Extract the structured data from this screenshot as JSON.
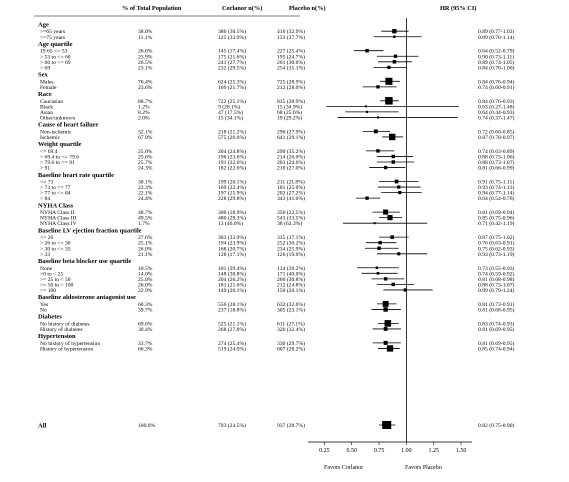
{
  "headers": {
    "pct": "% of Total Population",
    "cor": "Corlanor n(%)",
    "pla": "Placebo n(%)",
    "hr": "HR (95% CI)"
  },
  "favors": {
    "left": "Favors Corlanor",
    "right": "Favors Placebo"
  },
  "chart_data": {
    "type": "forest",
    "x_ticks": [
      0.25,
      0.5,
      0.75,
      1.0,
      1.25,
      1.5
    ],
    "x_tick_labels": [
      "0.25",
      "0.50",
      "0.75",
      "1.00",
      "1.25",
      "1.50"
    ],
    "xlim": [
      0.1,
      1.6
    ],
    "reference_line": 1.0,
    "groups": [
      {
        "title": "Age",
        "rows": [
          {
            "label": ">=65 years",
            "pct": "38.0%",
            "cor": "386 (30.5%)",
            "pla": "410 (32.9%)",
            "hr": 0.89,
            "lo": 0.77,
            "hi": 1.02,
            "hr_text": "0.89 (0.77-1.02)"
          },
          {
            "label": ">=75 years",
            "pct": "11.1%",
            "cor": "125 (33.9%)",
            "pla": "133 (37.7%)",
            "hr": 0.89,
            "lo": 0.7,
            "hi": 1.14,
            "hr_text": "0.89 (0.70-1.14)"
          }
        ]
      },
      {
        "title": "Age quartile",
        "rows": [
          {
            "label": "19 65 <= 53",
            "pct": "26.6%",
            "cor": "145 (17.4%)",
            "pla": "227 (25.4%)",
            "hr": 0.64,
            "lo": 0.52,
            "hi": 0.79,
            "hr_text": "0.64 (0.52-0.79)"
          },
          {
            "label": "> 53 to <= 60",
            "pct": "23.9%",
            "cor": "175 (21.6%)",
            "pla": "195 (24.7%)",
            "hr": 0.9,
            "lo": 0.73,
            "hi": 1.11,
            "hr_text": "0.90 (0.73-1.11)"
          },
          {
            "label": "> 60 to <= 69",
            "pct": "26.5%",
            "cor": "241 (27.7%)",
            "pla": "261 (30.6%)",
            "hr": 0.89,
            "lo": 0.74,
            "hi": 1.05,
            "hr_text": "0.89 (0.74-1.05)"
          },
          {
            "label": "> 69",
            "pct": "23.1%",
            "cor": "232 (29.5%)",
            "pla": "254 (35.1%)",
            "hr": 0.84,
            "lo": 0.7,
            "hi": 1.0,
            "hr_text": "0.84 (0.70-1.00)"
          }
        ]
      },
      {
        "title": "Sex",
        "rows": [
          {
            "label": "Males",
            "pct": "76.4%",
            "cor": "624 (25.3%)",
            "pla": "725 (28.9%)",
            "hr": 0.84,
            "lo": 0.76,
            "hi": 0.94,
            "hr_text": "0.84 (0.76-0.94)"
          },
          {
            "label": "Female",
            "pct": "23.6%",
            "cor": "169 (21.7%)",
            "pla": "212 (28.0%)",
            "hr": 0.74,
            "lo": 0.6,
            "hi": 0.91,
            "hr_text": "0.74 (0.60-0.91)"
          }
        ]
      },
      {
        "title": "Race",
        "rows": [
          {
            "label": "Caucasian",
            "pct": "88.7%",
            "cor": "722 (25.1%)",
            "pla": "835 (28.9%)",
            "hr": 0.84,
            "lo": 0.76,
            "hi": 0.93,
            "hr_text": "0.84 (0.76-0.93)"
          },
          {
            "label": "Black",
            "pct": "1.2%",
            "cor": "9 (28.1%)",
            "pla": "15 (34.9%)",
            "hr": 0.63,
            "lo": 0.27,
            "hi": 1.48,
            "hr_text": "0.63 (0.27-1.48)"
          },
          {
            "label": "Asian",
            "pct": "8.2%",
            "cor": "47 (17.5%)",
            "pla": "68 (25.6%)",
            "hr": 0.64,
            "lo": 0.44,
            "hi": 0.93,
            "hr_text": "0.64 (0.44-0.93)"
          },
          {
            "label": "Other/unknown",
            "pct": "2.0%",
            "cor": "15 (34.1%)",
            "pla": "19 (29.2%)",
            "hr": 0.74,
            "lo": 0.37,
            "hi": 1.47,
            "hr_text": "0.74 (0.37-1.47)"
          }
        ]
      },
      {
        "title": "Cause of heart failure",
        "rows": [
          {
            "label": "Non-ischemic",
            "pct": "32.1%",
            "cor": "218 (21.2%)",
            "pla": "296 (27.9%)",
            "hr": 0.72,
            "lo": 0.6,
            "hi": 0.85,
            "hr_text": "0.72 (0.60-0.85)"
          },
          {
            "label": "Ischemic",
            "pct": "67.9%",
            "cor": "575 (26.6%)",
            "pla": "641 (29.1%)",
            "hr": 0.87,
            "lo": 0.78,
            "hi": 0.97,
            "hr_text": "0.87 (0.78-0.97)"
          }
        ]
      },
      {
        "title": "Weight quartile",
        "rows": [
          {
            "label": "<= 69.4",
            "pct": "25.0%",
            "cor": "204 (24.8%)",
            "pla": "290 (35.2%)",
            "hr": 0.74,
            "lo": 0.63,
            "hi": 0.89,
            "hr_text": "0.74 (0.63-0.89)"
          },
          {
            "label": "> 69.4 to <= 79.6",
            "pct": "25.6%",
            "cor": "196 (23.6%)",
            "pla": "214 (26.0%)",
            "hr": 0.88,
            "lo": 0.73,
            "hi": 1.06,
            "hr_text": "0.88 (0.73-1.06)"
          },
          {
            "label": "> 79.6 to <= 91",
            "pct": "25.7%",
            "cor": "191 (22.6%)",
            "pla": "203 (24.6%)",
            "hr": 0.88,
            "lo": 0.73,
            "hi": 1.07,
            "hr_text": "0.88 (0.73-1.07)"
          },
          {
            "label": "> 91",
            "pct": "24.3%",
            "cor": "182 (22.6%)",
            "pla": "210 (27.0%)",
            "hr": 0.81,
            "lo": 0.66,
            "hi": 0.99,
            "hr_text": "0.81 (0.66-0.99)"
          }
        ]
      },
      {
        "title": "Baseline heart rate quartile",
        "rows": [
          {
            "label": "<= 73",
            "pct": "30.1%",
            "cor": "199 (20.1%)",
            "pla": "211 (21.8%)",
            "hr": 0.91,
            "lo": 0.75,
            "hi": 1.11,
            "hr_text": "0.91 (0.75-1.11)"
          },
          {
            "label": "> 73 to <= 77",
            "pct": "23.3%",
            "cor": "169 (22.4%)",
            "pla": "181 (25.0%)",
            "hr": 0.93,
            "lo": 0.74,
            "hi": 1.13,
            "hr_text": "0.93 (0.74-1.13)"
          },
          {
            "label": "> 77 to <= 84",
            "pct": "22.1%",
            "cor": "197 (25.9%)",
            "pla": "202 (27.2%)",
            "hr": 0.94,
            "lo": 0.77,
            "hi": 1.14,
            "hr_text": "0.94 (0.77-1.14)"
          },
          {
            "label": "> 84",
            "pct": "24.4%",
            "cor": "228 (29.8%)",
            "pla": "343 (41.6%)",
            "hr": 0.64,
            "lo": 0.54,
            "hi": 0.76,
            "hr_text": "0.64 (0.54-0.76)"
          }
        ]
      },
      {
        "title": "NYHA Class",
        "rows": [
          {
            "label": "NYHA Class II",
            "pct": "48.7%",
            "cor": "300 (18.9%)",
            "pla": "356 (22.5%)",
            "hr": 0.81,
            "lo": 0.69,
            "hi": 0.94,
            "hr_text": "0.81 (0.69-0.94)"
          },
          {
            "label": "NYHA Class III",
            "pct": "49.5%",
            "cor": "480 (29.3%)",
            "pla": "543 (33.5%)",
            "hr": 0.85,
            "lo": 0.75,
            "hi": 0.96,
            "hr_text": "0.85 (0.75-0.96)"
          },
          {
            "label": "NYHA Class IV",
            "pct": "1.7%",
            "cor": "13 (46.0%)",
            "pla": "38 (62.3%)",
            "hr": 0.71,
            "lo": 0.42,
            "hi": 1.19,
            "hr_text": "0.71 (0.42-1.19)"
          }
        ]
      },
      {
        "title": "Baseline LV ejection fraction quartile",
        "rows": [
          {
            "label": "<= 26",
            "pct": "27.6%",
            "cor": "303 (33.9%)",
            "pla": "335 (37.1%)",
            "hr": 0.87,
            "lo": 0.75,
            "hi": 1.02,
            "hr_text": "0.87 (0.75-1.02)"
          },
          {
            "label": "> 26 to <= 30",
            "pct": "25.1%",
            "cor": "194 (23.9%)",
            "pla": "252 (30.2%)",
            "hr": 0.76,
            "lo": 0.63,
            "hi": 0.91,
            "hr_text": "0.76 (0.63-0.91)"
          },
          {
            "label": "> 30 to <= 33",
            "pct": "26.0%",
            "cor": "168 (20.7%)",
            "pla": "234 (25.9%)",
            "hr": 0.75,
            "lo": 0.62,
            "hi": 0.93,
            "hr_text": "0.75 (0.62-0.93)"
          },
          {
            "label": "> 33",
            "pct": "21.1%",
            "cor": "128 (17.1%)",
            "pla": "126 (19.0%)",
            "hr": 0.93,
            "lo": 0.73,
            "hi": 1.19,
            "hr_text": "0.93 (0.73-1.19)"
          }
        ]
      },
      {
        "title": "Baseline beta blocker use quartile",
        "rows": [
          {
            "label": "None",
            "pct": "10.5%",
            "cor": "101 (39.4%)",
            "pla": "134 (39.2%)",
            "hr": 0.73,
            "lo": 0.55,
            "hi": 0.93,
            "hr_text": "0.73 (0.55-0.93)"
          },
          {
            "label": ">0 to < 25",
            "pct": "14.0%",
            "cor": "148 (30.8%)",
            "pla": "171 (40.0%)",
            "hr": 0.74,
            "lo": 0.59,
            "hi": 0.92,
            "hr_text": "0.74 (0.59-0.92)"
          },
          {
            "label": ">= 25 to < 50",
            "pct": "25.0%",
            "cor": "204 (26.2%)",
            "pla": "260 (30.8%)",
            "hr": 0.81,
            "lo": 0.68,
            "hi": 0.98,
            "hr_text": "0.81 (0.68-0.98)"
          },
          {
            "label": ">= 50 to < 100",
            "pct": "26.0%",
            "cor": "181 (21.6%)",
            "pla": "212 (24.8%)",
            "hr": 0.88,
            "lo": 0.73,
            "hi": 1.07,
            "hr_text": "0.88 (0.73-1.07)"
          },
          {
            "label": ">= 100",
            "pct": "22.9%",
            "cor": "149 (20.1%)",
            "pla": "150 (20.1%)",
            "hr": 0.99,
            "lo": 0.79,
            "hi": 1.24,
            "hr_text": "0.99 (0.79-1.24)"
          }
        ]
      },
      {
        "title": "Baseline aldosterone antagonist use",
        "rows": [
          {
            "label": "Yes",
            "pct": "60.3%",
            "cor": "556 (28.1%)",
            "pla": "632 (32.6%)",
            "hr": 0.81,
            "lo": 0.73,
            "hi": 0.91,
            "hr_text": "0.81 (0.73-0.91)"
          },
          {
            "label": "No",
            "pct": "39.7%",
            "cor": "237 (18.8%)",
            "pla": "305 (23.1%)",
            "hr": 0.81,
            "lo": 0.68,
            "hi": 0.95,
            "hr_text": "0.81 (0.68-0.95)"
          }
        ]
      },
      {
        "title": "Diabetes",
        "rows": [
          {
            "label": "No history of diabetes",
            "pct": "69.6%",
            "cor": "525 (21.1%)",
            "pla": "611 (27.1%)",
            "hr": 0.83,
            "lo": 0.74,
            "hi": 0.93,
            "hr_text": "0.83 (0.74-0.93)"
          },
          {
            "label": "History of diabetes",
            "pct": "30.4%",
            "cor": "268 (27.8%)",
            "pla": "326 (32.4%)",
            "hr": 0.81,
            "lo": 0.69,
            "hi": 0.95,
            "hr_text": "0.81 (0.69-0.95)"
          }
        ]
      },
      {
        "title": "Hypertension",
        "rows": [
          {
            "label": "No history of hypertension",
            "pct": "33.7%",
            "cor": "274 (25.4%)",
            "pla": "330 (29.7%)",
            "hr": 0.81,
            "lo": 0.69,
            "hi": 0.95,
            "hr_text": "0.81 (0.69-0.95)"
          },
          {
            "label": "History of hypertension",
            "pct": "66.3%",
            "cor": "519 (24.0%)",
            "pla": "607 (28.2%)",
            "hr": 0.85,
            "lo": 0.74,
            "hi": 0.94,
            "hr_text": "0.85 (0.74-0.94)"
          }
        ]
      }
    ],
    "overall": {
      "label": "All",
      "pct": "100.0%",
      "cor": "793 (24.5%)",
      "pla": "937 (28.7%)",
      "hr": 0.82,
      "lo": 0.75,
      "hi": 0.9,
      "hr_text": "0.82 (0.75-0.90)"
    }
  }
}
